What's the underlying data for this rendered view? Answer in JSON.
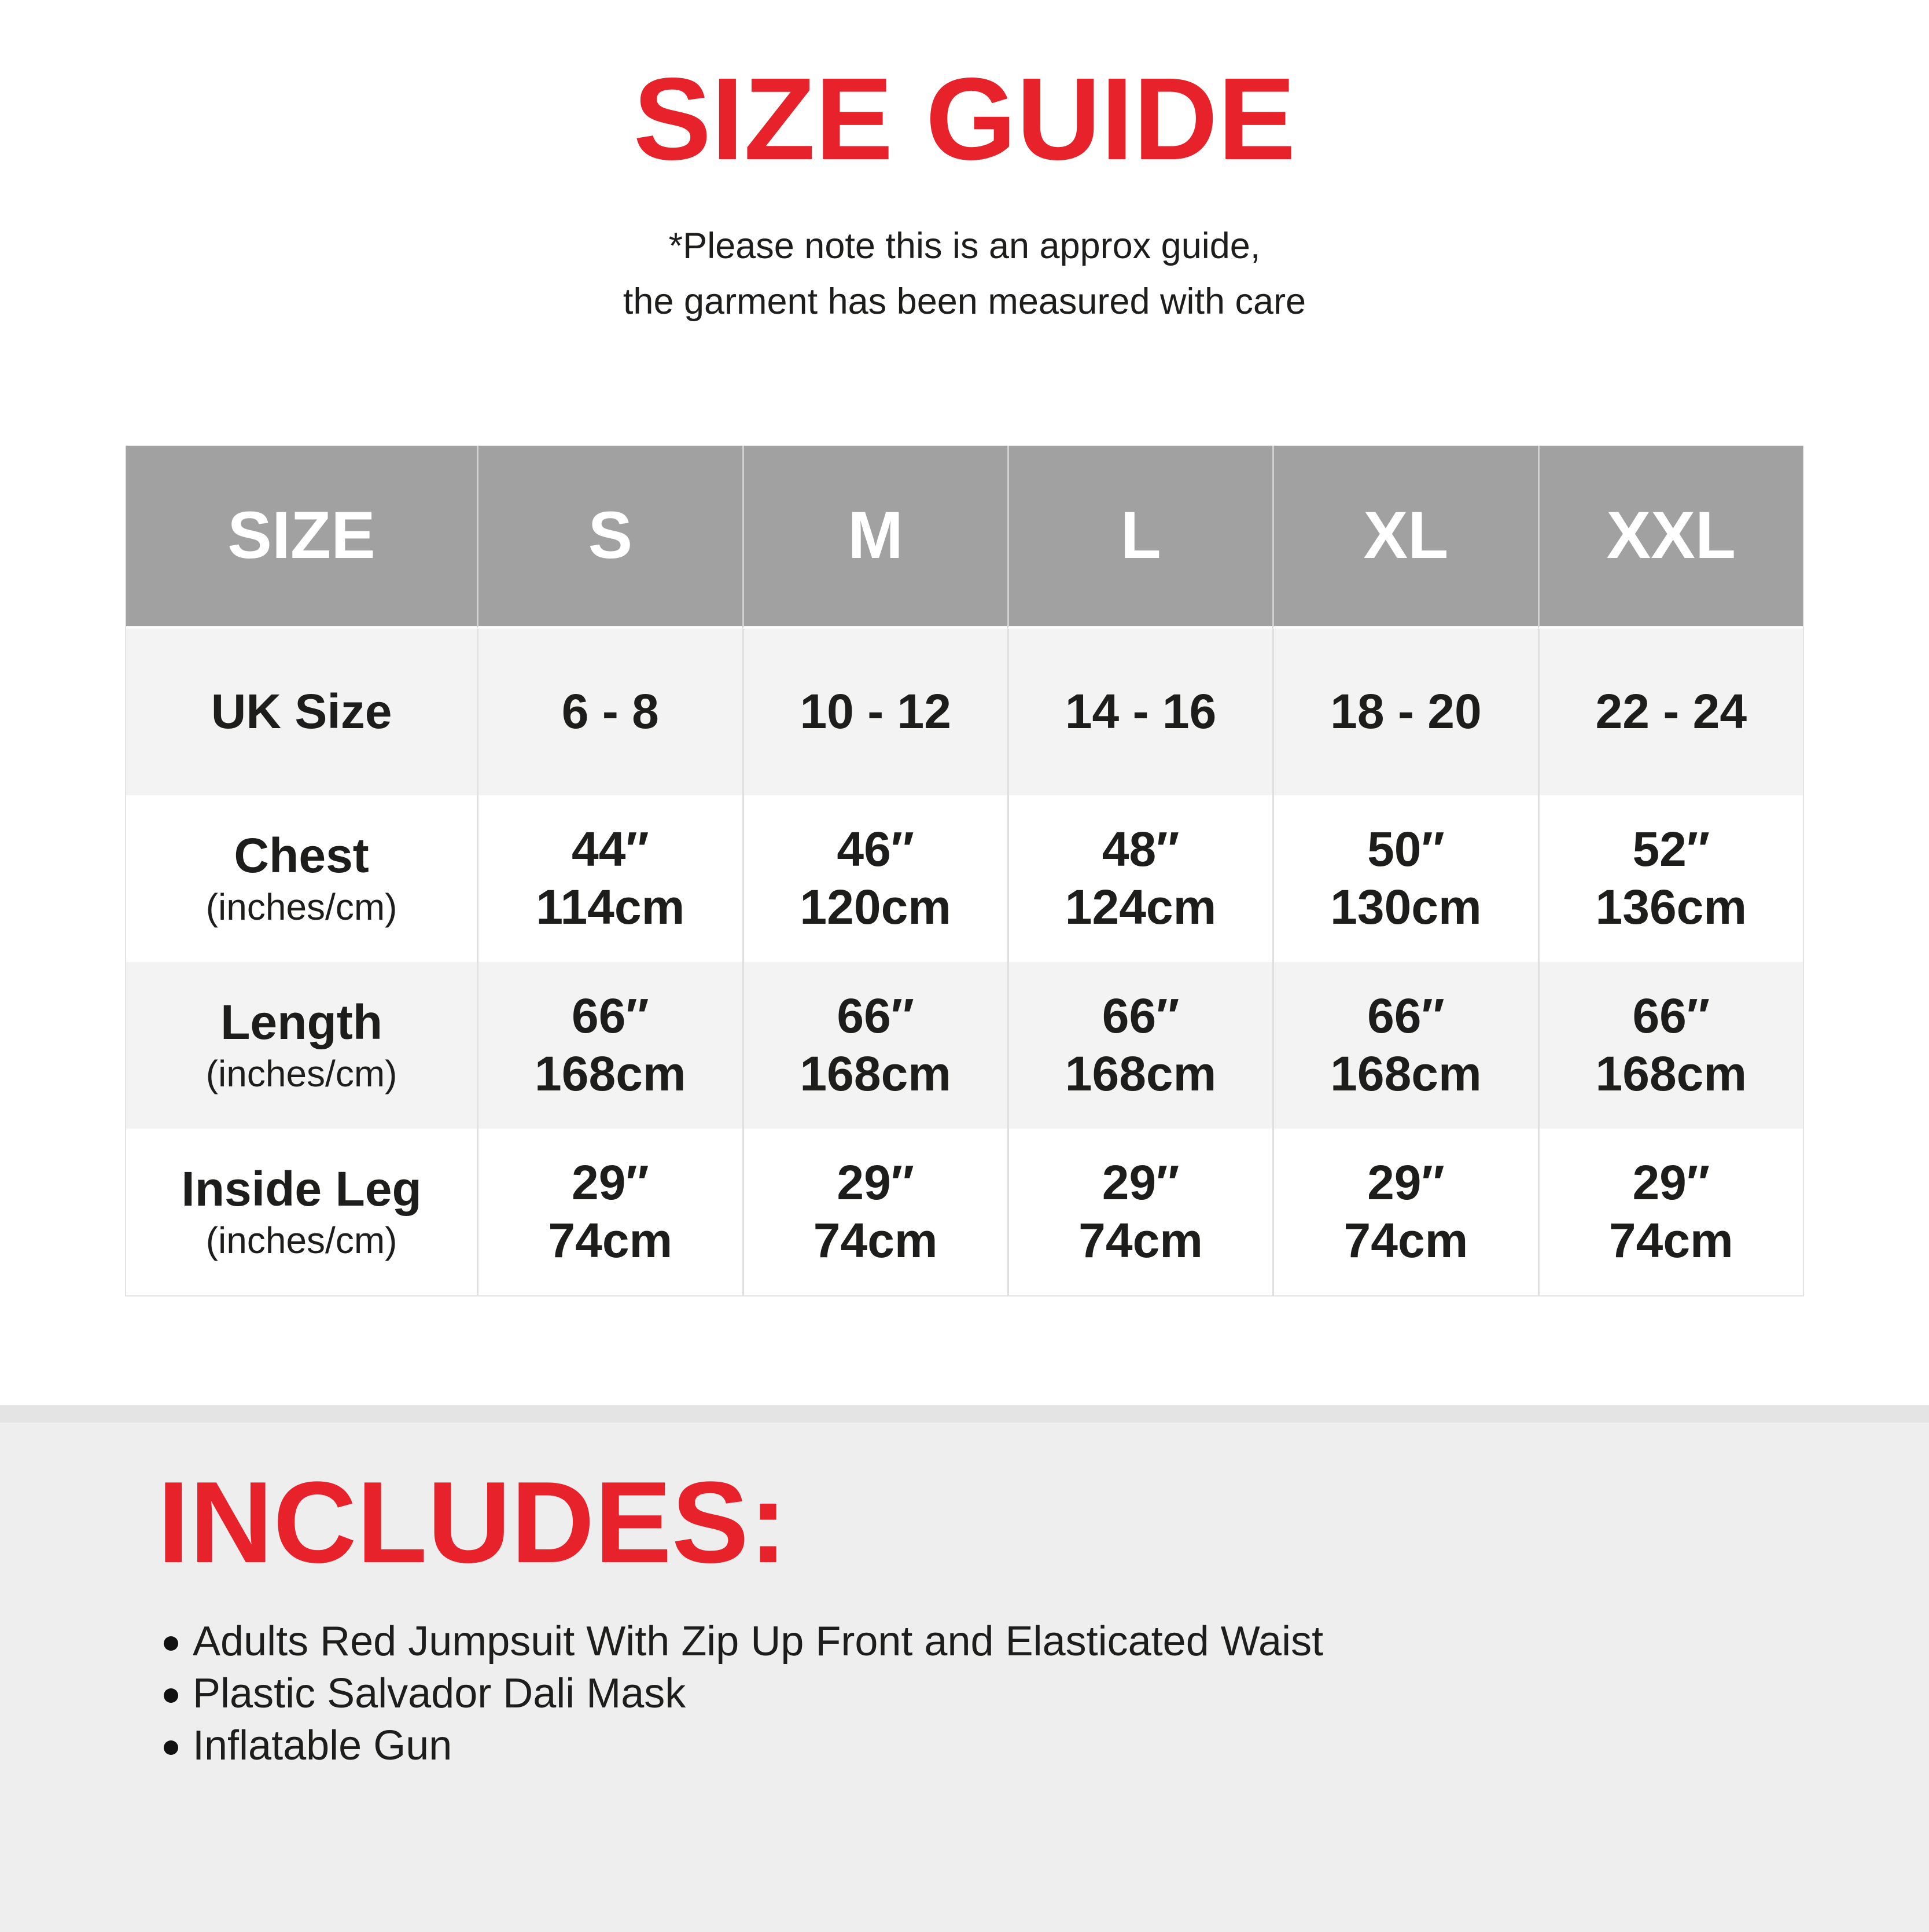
{
  "header": {
    "title": "SIZE GUIDE",
    "note_line1": "*Please note this is an approx guide,",
    "note_line2": "the garment has been measured with care"
  },
  "size_table": {
    "columns": [
      "SIZE",
      "S",
      "M",
      "L",
      "XL",
      "XXL"
    ],
    "rows": [
      {
        "label": "UK Size",
        "sublabel": "",
        "values": [
          [
            "6 - 8"
          ],
          [
            "10 - 12"
          ],
          [
            "14 - 16"
          ],
          [
            "18 - 20"
          ],
          [
            "22 - 24"
          ]
        ]
      },
      {
        "label": "Chest",
        "sublabel": "(inches/cm)",
        "values": [
          [
            "44″",
            "114cm"
          ],
          [
            "46″",
            "120cm"
          ],
          [
            "48″",
            "124cm"
          ],
          [
            "50″",
            "130cm"
          ],
          [
            "52″",
            "136cm"
          ]
        ]
      },
      {
        "label": "Length",
        "sublabel": "(inches/cm)",
        "values": [
          [
            "66″",
            "168cm"
          ],
          [
            "66″",
            "168cm"
          ],
          [
            "66″",
            "168cm"
          ],
          [
            "66″",
            "168cm"
          ],
          [
            "66″",
            "168cm"
          ]
        ]
      },
      {
        "label": "Inside Leg",
        "sublabel": "(inches/cm)",
        "values": [
          [
            "29″",
            "74cm"
          ],
          [
            "29″",
            "74cm"
          ],
          [
            "29″",
            "74cm"
          ],
          [
            "29″",
            "74cm"
          ],
          [
            "29″",
            "74cm"
          ]
        ]
      }
    ]
  },
  "includes": {
    "heading": "INCLUDES:",
    "items": [
      "Adults Red Jumpsuit With Zip Up Front and Elasticated Waist",
      "Plastic Salvador Dali Mask",
      "Inflatable Gun"
    ]
  },
  "colors": {
    "accent_red": "#e8222a",
    "table_header_gray": "#a1a1a1",
    "row_alt_gray": "#f3f3f3",
    "footer_gray": "#eeeeee"
  }
}
